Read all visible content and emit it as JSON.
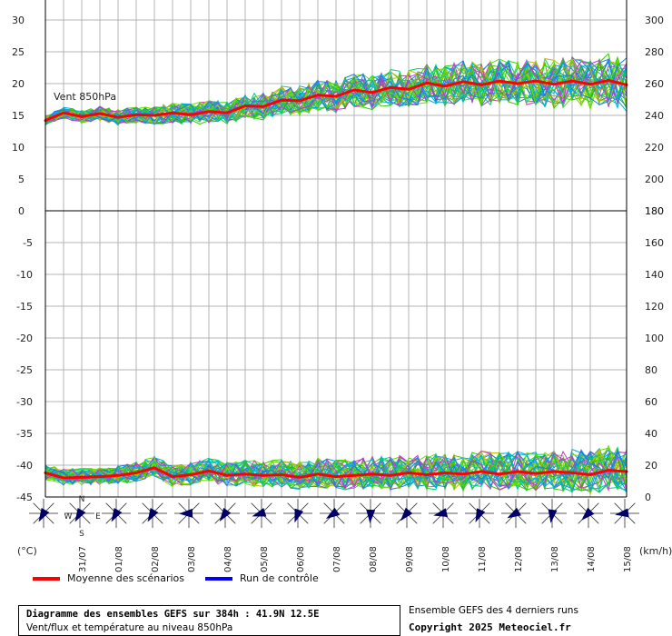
{
  "chart_data": [
    {
      "type": "line",
      "panel": "top",
      "annotation": "Vent 850hPa",
      "ylim_left": [
        0,
        30
      ],
      "yticks_left": [
        0,
        5,
        10,
        15,
        20,
        25,
        30
      ],
      "ylim_right": [
        180,
        300
      ],
      "yticks_right": [
        180,
        200,
        220,
        240,
        260,
        280,
        300
      ],
      "grid": true,
      "x_start_day": 30,
      "x_end_day": 46,
      "series": [
        {
          "name": "Moyenne des scénarios",
          "color": "#ff0000",
          "x": [
            30,
            30.5,
            31,
            31.5,
            32,
            32.5,
            33,
            33.5,
            34,
            34.5,
            35,
            35.5,
            36,
            36.5,
            37,
            37.5,
            38,
            38.5,
            39,
            39.5,
            40,
            40.5,
            41,
            41.5,
            42,
            42.5,
            43,
            43.5,
            44,
            44.5,
            45,
            45.5,
            46
          ],
          "y": [
            14.2,
            15.4,
            14.8,
            15.3,
            14.7,
            15.1,
            15.0,
            15.4,
            15.1,
            15.6,
            15.4,
            16.5,
            16.4,
            17.4,
            17.3,
            18.2,
            18.0,
            19.0,
            18.6,
            19.4,
            19.1,
            20.1,
            19.6,
            20.3,
            19.8,
            20.4,
            20.0,
            20.4,
            19.9,
            20.4,
            19.9,
            20.5,
            19.8
          ]
        }
      ]
    },
    {
      "type": "line",
      "panel": "bottom",
      "ylim_left": [
        -45,
        0
      ],
      "yticks_left": [
        -45,
        -40,
        -35,
        -30,
        -25,
        -20,
        -15,
        -10,
        -5,
        0
      ],
      "ylim_right": [
        0,
        180
      ],
      "yticks_right": [
        0,
        20,
        40,
        60,
        80,
        100,
        120,
        140,
        160,
        180
      ],
      "grid": true,
      "x_start_day": 30,
      "x_end_day": 46,
      "series": [
        {
          "name": "Moyenne des scénarios",
          "color": "#ff0000",
          "x": [
            30,
            30.5,
            31,
            31.5,
            32,
            32.5,
            33,
            33.5,
            34,
            34.5,
            35,
            35.5,
            36,
            36.5,
            37,
            37.5,
            38,
            38.5,
            39,
            39.5,
            40,
            40.5,
            41,
            41.5,
            42,
            42.5,
            43,
            43.5,
            44,
            44.5,
            45,
            45.5,
            46
          ],
          "y": [
            -41.2,
            -42.0,
            -41.9,
            -41.8,
            -41.6,
            -41.2,
            -40.4,
            -41.8,
            -41.5,
            -40.9,
            -41.6,
            -41.4,
            -41.6,
            -41.5,
            -41.9,
            -41.4,
            -41.8,
            -41.6,
            -41.4,
            -41.6,
            -41.2,
            -41.5,
            -41.2,
            -41.4,
            -41.0,
            -41.4,
            -41.0,
            -41.3,
            -41.0,
            -41.2,
            -41.5,
            -40.8,
            -41.0
          ]
        }
      ]
    }
  ],
  "axis": {
    "left_unit": "(°C)",
    "right_unit": "(km/h)",
    "date_labels": [
      "31/07",
      "01/08",
      "02/08",
      "03/08",
      "04/08",
      "05/08",
      "06/08",
      "07/08",
      "08/08",
      "09/08",
      "10/08",
      "11/08",
      "12/08",
      "13/08",
      "14/08",
      "15/08"
    ],
    "wind_labels": [
      "N",
      "W",
      "E",
      "S"
    ]
  },
  "colors": {
    "grid": "#b4b4b4",
    "mean": "#ff0000",
    "control": "#0000ff",
    "wind": "#000066",
    "ensemble": [
      "#33cc00",
      "#66dd00",
      "#cc33cc",
      "#00aadd",
      "#2277ee",
      "#bbbb00",
      "#00cc88"
    ]
  },
  "legend": {
    "mean_label": "Moyenne des scénarios",
    "control_label": "Run de contrôle"
  },
  "footer": {
    "title": "Diagramme des ensembles GEFS sur 384h : 41.9N 12.5E",
    "subtitle": "Vent/flux et température au niveau 850hPa",
    "runs": "Ensemble GEFS des 4 derniers runs",
    "copyright": "Copyright 2025 Meteociel.fr"
  }
}
